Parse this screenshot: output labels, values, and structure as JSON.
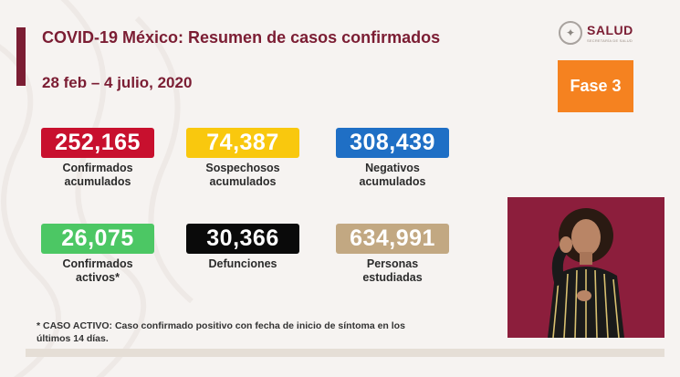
{
  "header": {
    "title": "COVID-19 México: Resumen de casos confirmados",
    "date_range": "28 feb – 4 julio, 2020"
  },
  "logo": {
    "text": "SALUD",
    "subtext": "SECRETARÍA DE SALUD"
  },
  "phase": {
    "label": "Fase 3",
    "color": "#f58220"
  },
  "stats": [
    {
      "value": "252,165",
      "label_line1": "Confirmados",
      "label_line2": "acumulados",
      "color": "#c8102e"
    },
    {
      "value": "74,387",
      "label_line1": "Sospechosos",
      "label_line2": "acumulados",
      "color": "#f9c80e"
    },
    {
      "value": "308,439",
      "label_line1": "Negativos",
      "label_line2": "acumulados",
      "color": "#1f6fc5"
    },
    {
      "value": "26,075",
      "label_line1": "Confirmados",
      "label_line2": "activos*",
      "color": "#4cc764"
    },
    {
      "value": "30,366",
      "label_line1": "Defunciones",
      "label_line2": "",
      "color": "#0a0a0a"
    },
    {
      "value": "634,991",
      "label_line1": "Personas",
      "label_line2": "estudiadas",
      "color": "#c2a882"
    }
  ],
  "footnote": {
    "line1": "* CASO ACTIVO: Caso confirmado positivo con fecha de inicio de síntoma en los",
    "line2": "últimos 14 días."
  },
  "colors": {
    "brand": "#7b1d33",
    "interpreter_background": "#8c1e3c"
  }
}
